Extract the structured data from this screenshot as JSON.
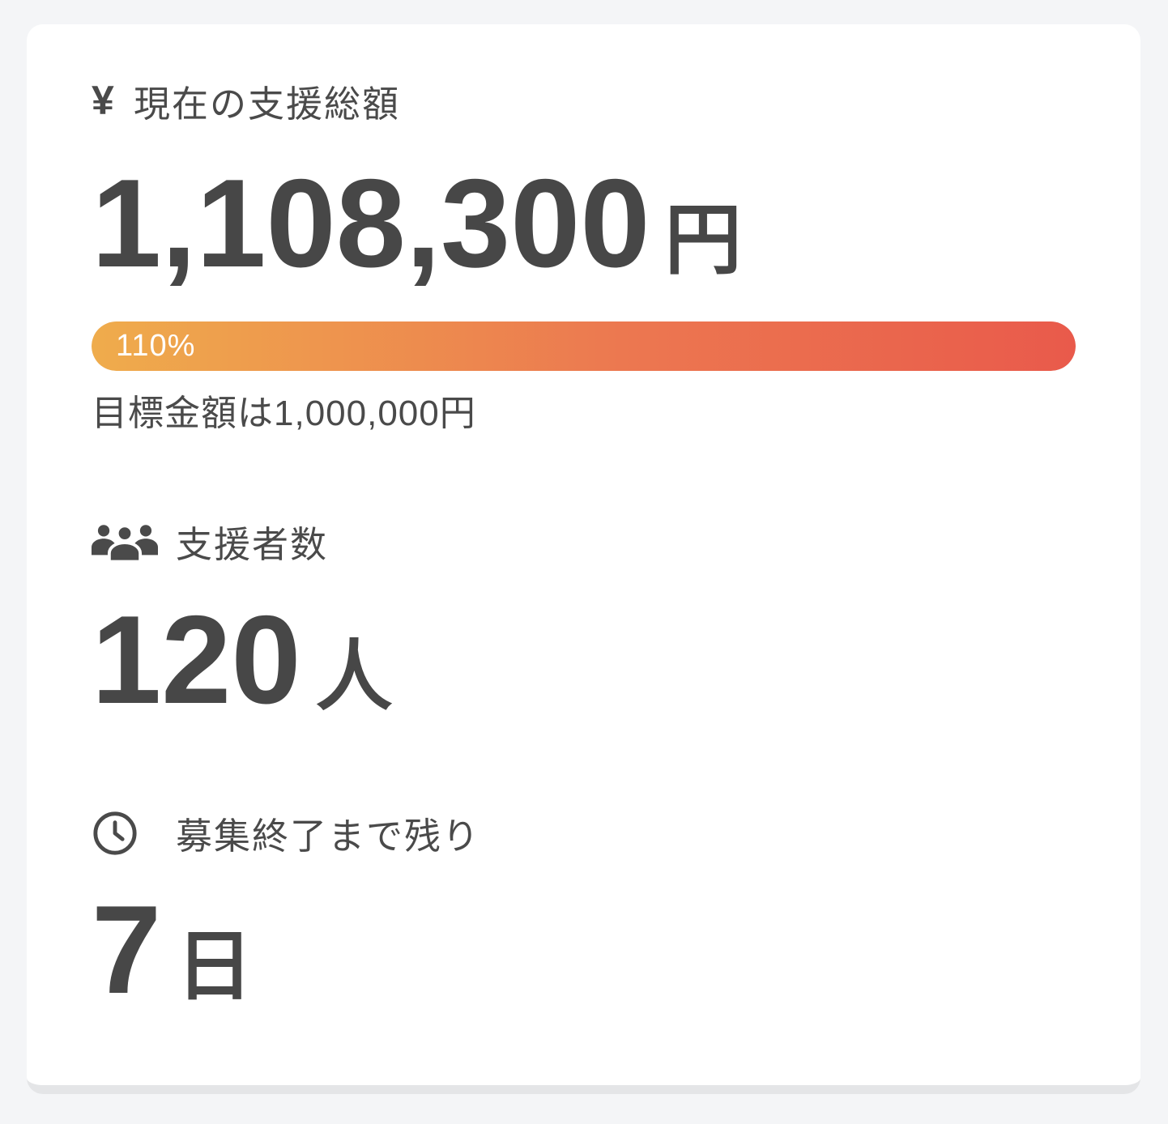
{
  "colors": {
    "page_background": "#f4f5f7",
    "card_background": "#ffffff",
    "card_border_bottom": "#e4e5e7",
    "text_dark": "#4a4a4a",
    "number_dark": "#474747",
    "bar_gradient_start": "#efac4c",
    "bar_gradient_mid": "#ec7750",
    "bar_gradient_end": "#e95a4b",
    "bar_text": "#ffffff"
  },
  "stats": {
    "funding": {
      "icon": "yen-icon",
      "icon_glyph": "¥",
      "label": "現在の支援総額",
      "amount": "1,108,300",
      "unit": "円",
      "progress": {
        "percent": 110,
        "percent_label": "110%"
      },
      "goal_text": "目標金額は1,000,000円"
    },
    "supporters": {
      "icon": "people-icon",
      "label": "支援者数",
      "count": "120",
      "unit": "人"
    },
    "deadline": {
      "icon": "clock-icon",
      "label": "募集終了まで残り",
      "value": "7",
      "unit": "日"
    }
  }
}
